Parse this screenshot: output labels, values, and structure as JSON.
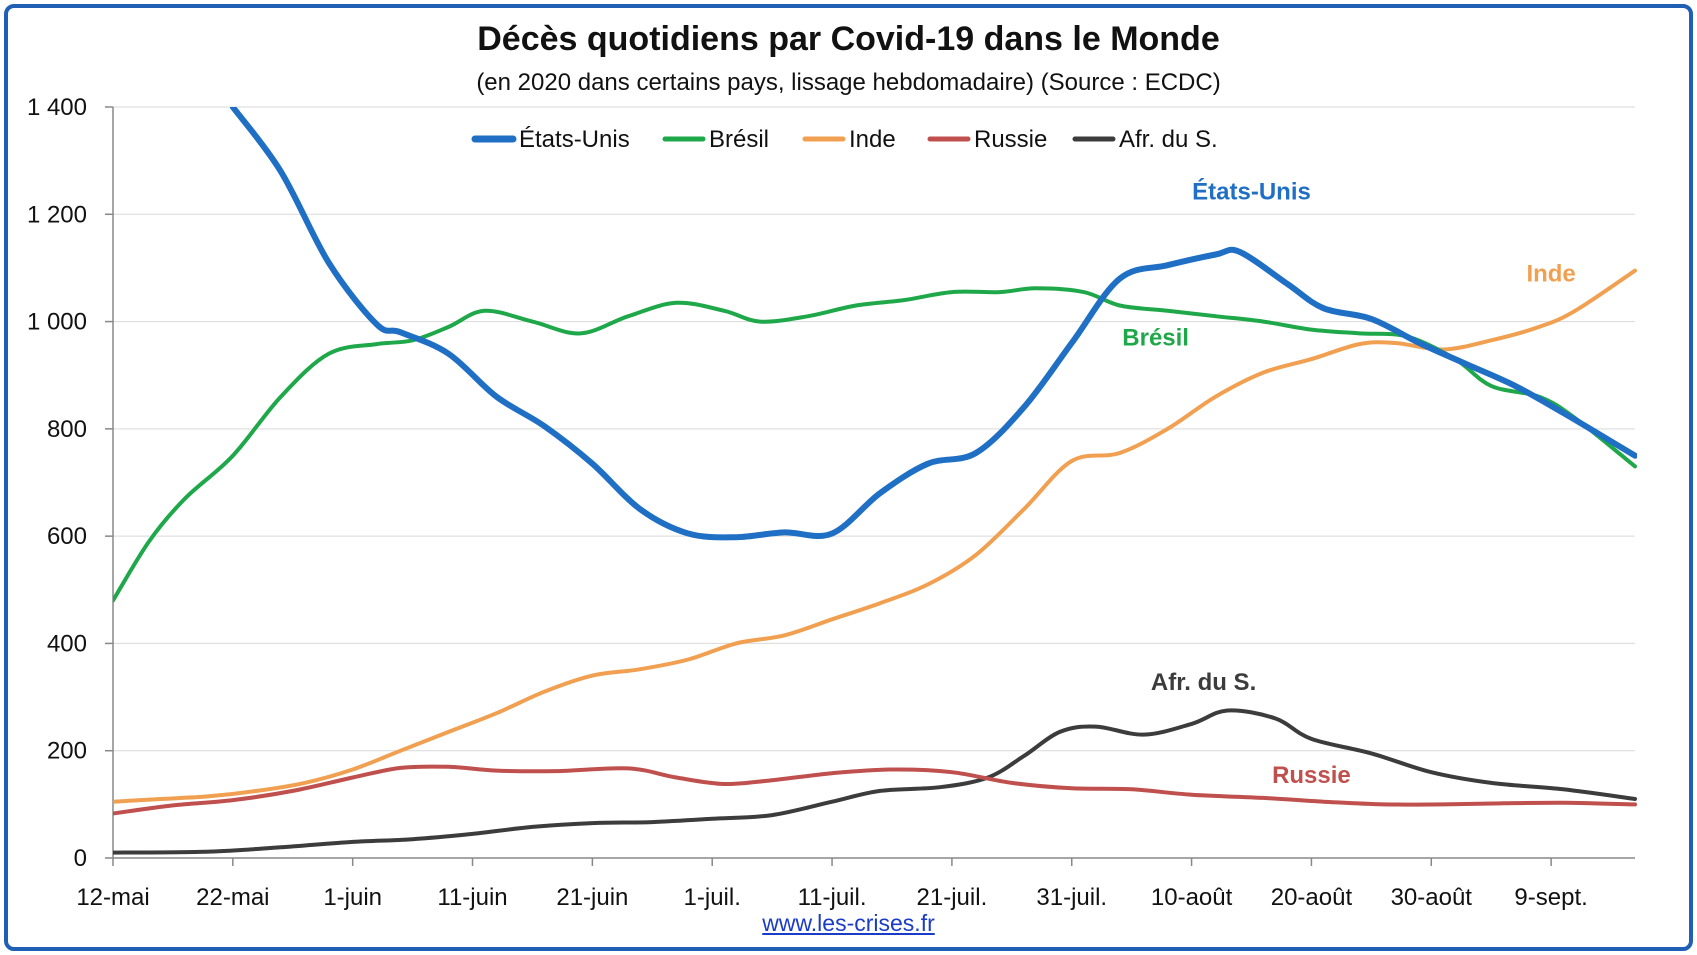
{
  "title": "Décès quotidiens par Covid-19 dans le Monde",
  "subtitle": "(en 2020 dans certains pays, lissage hebdomadaire) (Source : ECDC)",
  "source_link": "www.les-crises.fr",
  "chart_data": {
    "type": "line",
    "x_start": "2020-05-12",
    "x_tick_labels": [
      "12-mai",
      "22-mai",
      "1-juin",
      "11-juin",
      "21-juin",
      "1-juil.",
      "11-juil.",
      "21-juil.",
      "31-juil.",
      "10-août",
      "20-août",
      "30-août",
      "9-sept."
    ],
    "x_ticks": [
      "2020-05-12",
      "2020-05-22",
      "2020-06-01",
      "2020-06-11",
      "2020-06-21",
      "2020-07-01",
      "2020-07-11",
      "2020-07-21",
      "2020-07-31",
      "2020-08-10",
      "2020-08-20",
      "2020-08-30",
      "2020-09-09"
    ],
    "x_end": "2020-09-16",
    "ylim": [
      0,
      1400
    ],
    "y_ticks": [
      0,
      200,
      400,
      600,
      800,
      1000,
      1200,
      1400
    ],
    "y_tick_labels": [
      "0",
      "200",
      "400",
      "600",
      "800",
      "1 000",
      "1 200",
      "1 400"
    ],
    "grid": true,
    "legend_position": "top",
    "series": [
      {
        "name": "États-Unis",
        "label": "États-Unis",
        "color": "#1f6fc5",
        "width": 6,
        "points": [
          [
            "2020-05-22",
            1400
          ],
          [
            "2020-05-26",
            1280
          ],
          [
            "2020-05-30",
            1110
          ],
          [
            "2020-06-03",
            995
          ],
          [
            "2020-06-05",
            980
          ],
          [
            "2020-06-09",
            940
          ],
          [
            "2020-06-13",
            860
          ],
          [
            "2020-06-17",
            805
          ],
          [
            "2020-06-21",
            735
          ],
          [
            "2020-06-25",
            650
          ],
          [
            "2020-06-29",
            605
          ],
          [
            "2020-07-03",
            598
          ],
          [
            "2020-07-07",
            607
          ],
          [
            "2020-07-11",
            605
          ],
          [
            "2020-07-15",
            680
          ],
          [
            "2020-07-19",
            735
          ],
          [
            "2020-07-23",
            755
          ],
          [
            "2020-07-27",
            840
          ],
          [
            "2020-07-31",
            960
          ],
          [
            "2020-08-04",
            1080
          ],
          [
            "2020-08-08",
            1105
          ],
          [
            "2020-08-12",
            1125
          ],
          [
            "2020-08-14",
            1130
          ],
          [
            "2020-08-18",
            1070
          ],
          [
            "2020-08-21",
            1025
          ],
          [
            "2020-08-25",
            1005
          ],
          [
            "2020-08-29",
            960
          ],
          [
            "2020-09-02",
            920
          ],
          [
            "2020-09-06",
            880
          ],
          [
            "2020-09-10",
            830
          ],
          [
            "2020-09-16",
            750
          ]
        ]
      },
      {
        "name": "Brésil",
        "label": "Brésil",
        "color": "#1fa84a",
        "width": 4,
        "points": [
          [
            "2020-05-12",
            480
          ],
          [
            "2020-05-15",
            590
          ],
          [
            "2020-05-18",
            670
          ],
          [
            "2020-05-22",
            750
          ],
          [
            "2020-05-26",
            860
          ],
          [
            "2020-05-30",
            940
          ],
          [
            "2020-06-03",
            958
          ],
          [
            "2020-06-06",
            965
          ],
          [
            "2020-06-09",
            990
          ],
          [
            "2020-06-12",
            1020
          ],
          [
            "2020-06-16",
            1000
          ],
          [
            "2020-06-20",
            978
          ],
          [
            "2020-06-24",
            1010
          ],
          [
            "2020-06-28",
            1035
          ],
          [
            "2020-07-02",
            1020
          ],
          [
            "2020-07-05",
            1000
          ],
          [
            "2020-07-09",
            1010
          ],
          [
            "2020-07-13",
            1030
          ],
          [
            "2020-07-17",
            1040
          ],
          [
            "2020-07-21",
            1055
          ],
          [
            "2020-07-25",
            1055
          ],
          [
            "2020-07-28",
            1062
          ],
          [
            "2020-08-01",
            1055
          ],
          [
            "2020-08-04",
            1030
          ],
          [
            "2020-08-08",
            1020
          ],
          [
            "2020-08-12",
            1010
          ],
          [
            "2020-08-16",
            1000
          ],
          [
            "2020-08-20",
            985
          ],
          [
            "2020-08-24",
            978
          ],
          [
            "2020-08-28",
            972
          ],
          [
            "2020-09-01",
            930
          ],
          [
            "2020-09-04",
            880
          ],
          [
            "2020-09-08",
            860
          ],
          [
            "2020-09-11",
            820
          ],
          [
            "2020-09-16",
            730
          ]
        ]
      },
      {
        "name": "Inde",
        "label": "Inde",
        "color": "#f0a050",
        "width": 4,
        "points": [
          [
            "2020-05-12",
            105
          ],
          [
            "2020-05-16",
            110
          ],
          [
            "2020-05-20",
            115
          ],
          [
            "2020-05-24",
            125
          ],
          [
            "2020-05-28",
            140
          ],
          [
            "2020-06-01",
            165
          ],
          [
            "2020-06-05",
            200
          ],
          [
            "2020-06-09",
            235
          ],
          [
            "2020-06-13",
            270
          ],
          [
            "2020-06-17",
            310
          ],
          [
            "2020-06-21",
            340
          ],
          [
            "2020-06-25",
            352
          ],
          [
            "2020-06-29",
            370
          ],
          [
            "2020-07-03",
            400
          ],
          [
            "2020-07-07",
            415
          ],
          [
            "2020-07-11",
            445
          ],
          [
            "2020-07-15",
            475
          ],
          [
            "2020-07-19",
            510
          ],
          [
            "2020-07-23",
            565
          ],
          [
            "2020-07-27",
            650
          ],
          [
            "2020-07-31",
            740
          ],
          [
            "2020-08-04",
            755
          ],
          [
            "2020-08-08",
            800
          ],
          [
            "2020-08-12",
            860
          ],
          [
            "2020-08-16",
            905
          ],
          [
            "2020-08-20",
            930
          ],
          [
            "2020-08-24",
            958
          ],
          [
            "2020-08-27",
            960
          ],
          [
            "2020-08-31",
            948
          ],
          [
            "2020-09-04",
            965
          ],
          [
            "2020-09-08",
            990
          ],
          [
            "2020-09-11",
            1020
          ],
          [
            "2020-09-16",
            1095
          ]
        ]
      },
      {
        "name": "Russie",
        "label": "Russie",
        "color": "#c0504d",
        "width": 4,
        "points": [
          [
            "2020-05-12",
            83
          ],
          [
            "2020-05-17",
            98
          ],
          [
            "2020-05-22",
            108
          ],
          [
            "2020-05-27",
            125
          ],
          [
            "2020-06-01",
            150
          ],
          [
            "2020-06-05",
            168
          ],
          [
            "2020-06-09",
            170
          ],
          [
            "2020-06-13",
            163
          ],
          [
            "2020-06-18",
            162
          ],
          [
            "2020-06-24",
            167
          ],
          [
            "2020-06-28",
            150
          ],
          [
            "2020-07-02",
            138
          ],
          [
            "2020-07-06",
            145
          ],
          [
            "2020-07-11",
            158
          ],
          [
            "2020-07-16",
            165
          ],
          [
            "2020-07-21",
            160
          ],
          [
            "2020-07-26",
            140
          ],
          [
            "2020-07-31",
            130
          ],
          [
            "2020-08-05",
            128
          ],
          [
            "2020-08-10",
            118
          ],
          [
            "2020-08-16",
            112
          ],
          [
            "2020-08-21",
            105
          ],
          [
            "2020-08-26",
            100
          ],
          [
            "2020-08-31",
            100
          ],
          [
            "2020-09-05",
            102
          ],
          [
            "2020-09-10",
            103
          ],
          [
            "2020-09-16",
            100
          ]
        ]
      },
      {
        "name": "Afr. du S.",
        "label": "Afr. du S.",
        "color": "#3c3c3c",
        "width": 4,
        "points": [
          [
            "2020-05-12",
            10
          ],
          [
            "2020-05-20",
            12
          ],
          [
            "2020-05-26",
            20
          ],
          [
            "2020-06-01",
            30
          ],
          [
            "2020-06-06",
            35
          ],
          [
            "2020-06-11",
            45
          ],
          [
            "2020-06-16",
            58
          ],
          [
            "2020-06-21",
            65
          ],
          [
            "2020-06-26",
            67
          ],
          [
            "2020-07-01",
            73
          ],
          [
            "2020-07-06",
            80
          ],
          [
            "2020-07-11",
            105
          ],
          [
            "2020-07-15",
            125
          ],
          [
            "2020-07-20",
            132
          ],
          [
            "2020-07-24",
            150
          ],
          [
            "2020-07-27",
            190
          ],
          [
            "2020-07-30",
            235
          ],
          [
            "2020-08-02",
            245
          ],
          [
            "2020-08-06",
            230
          ],
          [
            "2020-08-10",
            250
          ],
          [
            "2020-08-13",
            275
          ],
          [
            "2020-08-17",
            260
          ],
          [
            "2020-08-20",
            222
          ],
          [
            "2020-08-25",
            195
          ],
          [
            "2020-08-30",
            160
          ],
          [
            "2020-09-04",
            140
          ],
          [
            "2020-09-10",
            128
          ],
          [
            "2020-09-16",
            110
          ]
        ]
      }
    ],
    "annotations": [
      {
        "text": "États-Unis",
        "color": "#1f6fc5",
        "date": "2020-08-15",
        "value": 1228
      },
      {
        "text": "Inde",
        "color": "#f0a050",
        "date": "2020-09-09",
        "value": 1075
      },
      {
        "text": "Brésil",
        "color": "#1fa84a",
        "date": "2020-08-07",
        "value": 955
      },
      {
        "text": "Afr. du S.",
        "color": "#3c3c3c",
        "date": "2020-08-11",
        "value": 313
      },
      {
        "text": "Russie",
        "color": "#c0504d",
        "date": "2020-08-20",
        "value": 140
      }
    ]
  }
}
